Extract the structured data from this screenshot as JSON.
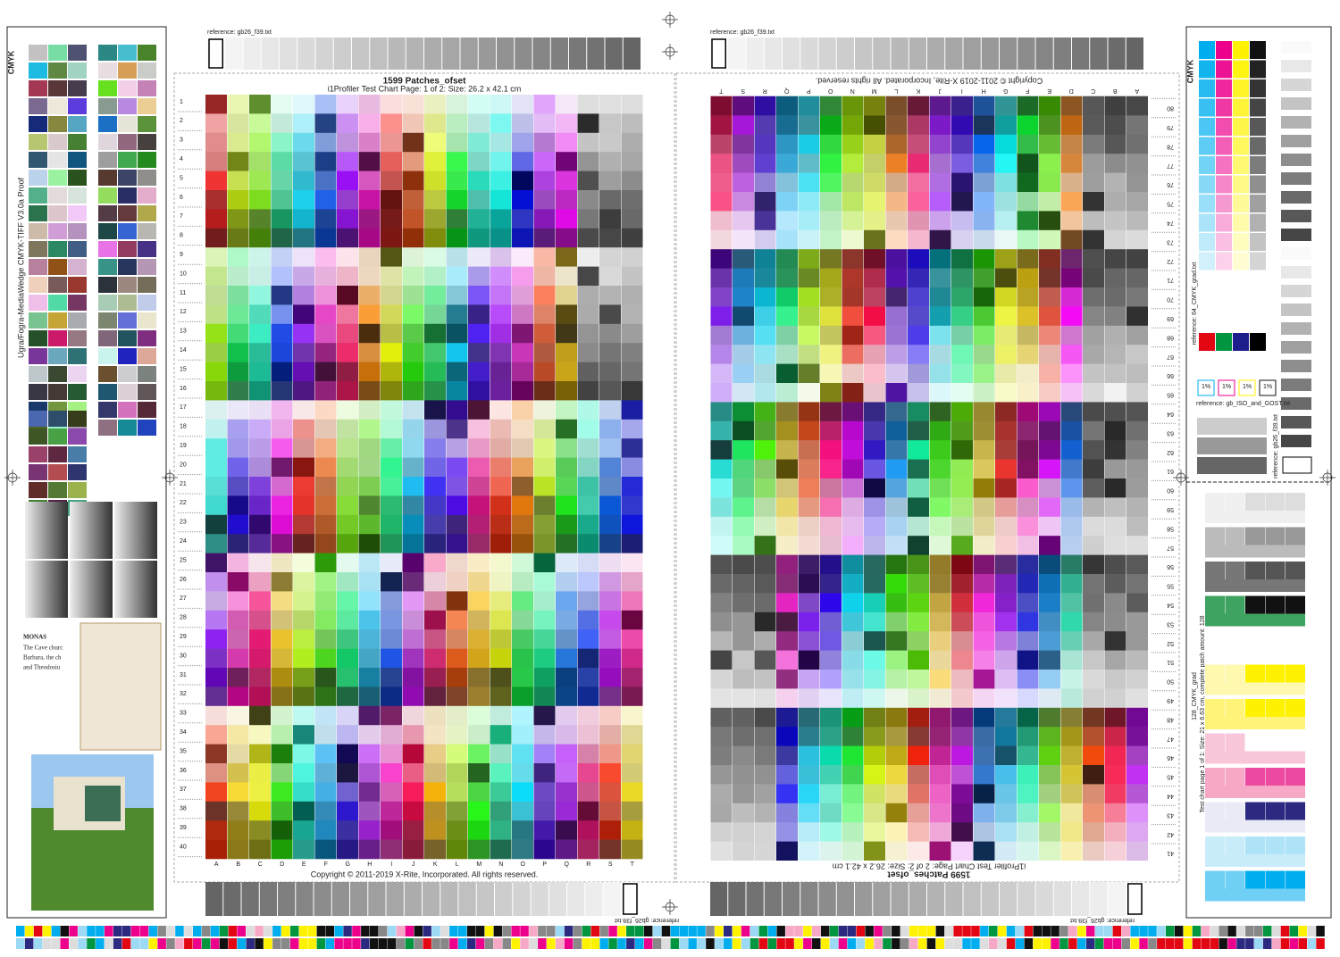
{
  "left_page": {
    "reference": "reference: gb26_f39.txt",
    "title": "1599 Patches_ofset",
    "subtitle": "i1Profiler Test Chart Page: 1 of 2: Size: 26.2 x 42.1 cm",
    "copyright": "Copyright © 2011-2019 X-Rite, Incorporated. All rights reserved.",
    "columns": [
      "A",
      "B",
      "C",
      "D",
      "E",
      "F",
      "G",
      "H",
      "I",
      "J",
      "K",
      "L",
      "M",
      "N",
      "O",
      "P",
      "Q",
      "R",
      "S",
      "T"
    ],
    "rows": [
      1,
      2,
      3,
      4,
      5,
      6,
      7,
      8,
      9,
      10,
      11,
      12,
      13,
      14,
      15,
      16,
      17,
      18,
      19,
      20,
      21,
      22,
      23,
      24,
      25,
      26,
      27,
      28,
      29,
      30,
      31,
      32,
      33,
      34,
      35,
      36,
      37,
      38,
      39,
      40
    ]
  },
  "right_page": {
    "reference": "reference: gb26_f39.txt",
    "title": "1599 Patches_ofset",
    "subtitle": "i1Profiler Test Chart Page: 2 of 2: Size: 26.2 x 42.1 cm",
    "copyright": "Copyright © 2011-2019 X-Rite, Incorporated. All rights reserved.",
    "columns": [
      "A",
      "B",
      "C",
      "D",
      "E",
      "F",
      "G",
      "H",
      "I",
      "J",
      "K",
      "L",
      "M",
      "N",
      "O",
      "P",
      "Q",
      "R",
      "S",
      "T"
    ],
    "rows": [
      41,
      42,
      43,
      44,
      45,
      46,
      47,
      48,
      49,
      50,
      51,
      52,
      53,
      54,
      55,
      56,
      57,
      58,
      59,
      60,
      61,
      62,
      63,
      64,
      65,
      66,
      67,
      68,
      69,
      70,
      71,
      72,
      73,
      74,
      75,
      76,
      77,
      78,
      79,
      80
    ]
  },
  "bottom_references": [
    "reference: gb26_f39.txt",
    "reference: gb26_f39.txt"
  ],
  "left_strip": {
    "cmyk": "CMYK",
    "wedge_label": "Ugra/Fogra-MediaWedge CMYK-TIFF V3.0a Proof",
    "heading": "MONAS",
    "lines": [
      "The Cave churc",
      "Barbara, the ch",
      "and Theodosiu"
    ]
  },
  "right_strip": {
    "cmyk": "CMYK",
    "grad_reference": "reference: 64_CMYK_grad.txt",
    "percent_labels": [
      "1%",
      "1%",
      "1%",
      "1%"
    ],
    "iso_reference": "reference: gb_ISO_and_GOST.txt",
    "side_reference": "reference: gb26_f39.txt",
    "grad_title": "128_CMYK_grad",
    "grad_subtitle": "Test chart page 1 of 1: Size: 21 x 6.63 cm, complete patch amount: 128"
  }
}
